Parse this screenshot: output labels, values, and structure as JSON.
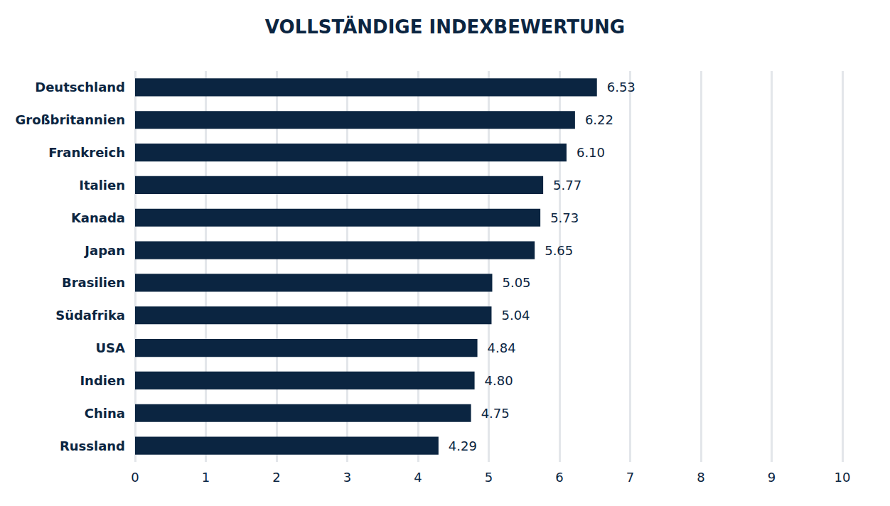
{
  "chart_data": {
    "type": "bar",
    "title": "VOLLSTÄNDIGE INDEXBEWERTUNG",
    "orientation": "horizontal",
    "categories": [
      "Deutschland",
      "Großbritannien",
      "Frankreich",
      "Italien",
      "Kanada",
      "Japan",
      "Brasilien",
      "Südafrika",
      "USA",
      "Indien",
      "China",
      "Russland"
    ],
    "values": [
      6.53,
      6.22,
      6.1,
      5.77,
      5.73,
      5.65,
      5.05,
      5.04,
      4.84,
      4.8,
      4.75,
      4.29
    ],
    "value_labels": [
      "6.53",
      "6.22",
      "6.10",
      "5.77",
      "5.73",
      "5.65",
      "5.05",
      "5.04",
      "4.84",
      "4.80",
      "4.75",
      "4.29"
    ],
    "color": "#0b2541",
    "xlim": [
      0,
      10
    ],
    "xticks": [
      0,
      1,
      2,
      3,
      4,
      5,
      6,
      7,
      8,
      9,
      10
    ],
    "grid": true,
    "data_labels": true
  }
}
